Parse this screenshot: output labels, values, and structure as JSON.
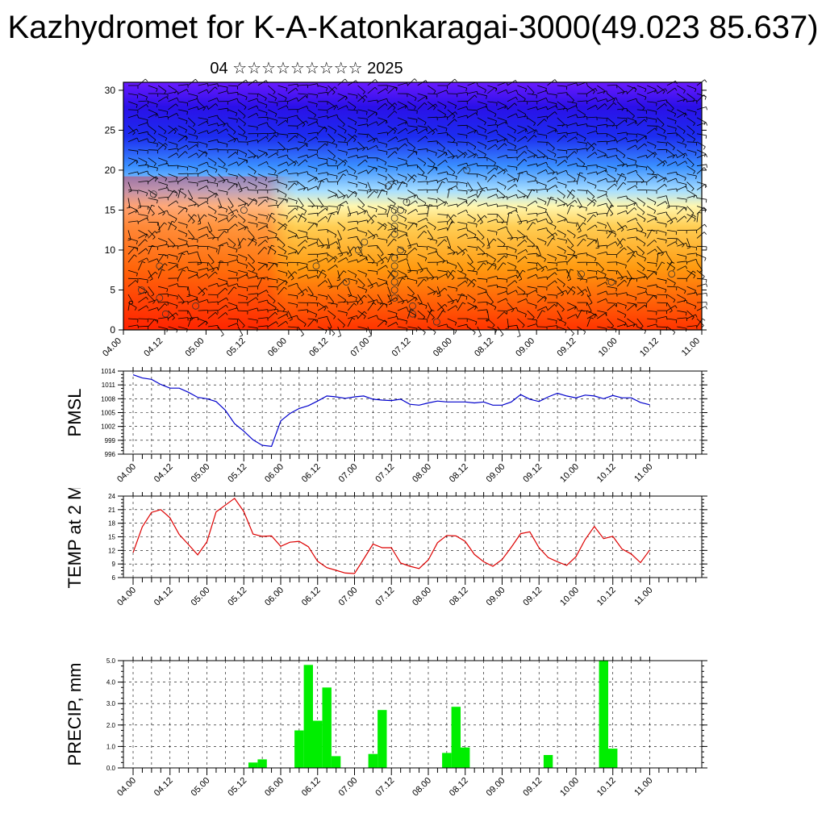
{
  "title": "Kazhydromet for K-A-Katonkaragai-3000(49.023 85.637)",
  "subtitle": "04 ☆☆☆☆☆☆☆☆☆ 2025",
  "colors": {
    "pmsl_line": "#0000cc",
    "temp_line": "#dd0000",
    "precip_bar": "#00ee00"
  },
  "chart_data": [
    {
      "type": "heatmap",
      "name": "vertical-wind-section",
      "x_ticks": [
        "04.00",
        "04.12",
        "05.00",
        "05.12",
        "06.00",
        "06.12",
        "07.00",
        "07.12",
        "08.00",
        "08.12",
        "09.00",
        "09.12",
        "10.00",
        "10.12",
        "11.00"
      ],
      "y_ticks": [
        0,
        5,
        10,
        15,
        20,
        25,
        30
      ],
      "ylim": [
        0,
        31
      ],
      "colormap": [
        "#ff1a00",
        "#ff8a00",
        "#ffd65a",
        "#fffaa8",
        "#9fdcff",
        "#2f86ff",
        "#1a1af0",
        "#6a17ff"
      ]
    },
    {
      "type": "line",
      "ylabel": "PMSL",
      "y_ticks": [
        996,
        999,
        1002,
        1005,
        1008,
        1011,
        1014
      ],
      "ylim": [
        996,
        1014
      ],
      "x_ticks": [
        "04.00",
        "04.12",
        "05.00",
        "05.12",
        "06.00",
        "06.12",
        "07.00",
        "07.12",
        "08.00",
        "08.12",
        "09.00",
        "09.12",
        "10.00",
        "10.12",
        "11.00"
      ],
      "x": [
        0,
        1,
        2,
        3,
        4,
        5,
        6,
        7,
        8,
        9,
        10,
        11,
        12,
        13,
        14,
        15,
        16,
        17,
        18,
        19,
        20,
        21,
        22,
        23,
        24,
        25,
        26,
        27,
        28,
        29,
        30,
        31,
        32,
        33,
        34,
        35,
        36,
        37,
        38,
        39,
        40,
        41,
        42,
        43,
        44,
        45,
        46,
        47,
        48,
        49,
        50,
        51,
        52,
        53,
        54,
        55,
        56
      ],
      "values": [
        1013.2,
        1012.5,
        1012.2,
        1011.1,
        1010.3,
        1010.3,
        1009.4,
        1008.3,
        1008.0,
        1007.4,
        1005.5,
        1002.6,
        1001.0,
        999.1,
        997.9,
        997.7,
        1003.2,
        1004.8,
        1005.9,
        1006.5,
        1007.5,
        1008.6,
        1008.4,
        1008.1,
        1008.4,
        1008.6,
        1007.9,
        1007.7,
        1007.6,
        1007.9,
        1006.8,
        1006.6,
        1007.1,
        1007.5,
        1007.3,
        1007.3,
        1007.3,
        1007.1,
        1007.3,
        1006.6,
        1006.6,
        1007.3,
        1008.9,
        1007.9,
        1007.4,
        1008.4,
        1009.2,
        1008.6,
        1008.2,
        1008.8,
        1008.6,
        1008.0,
        1008.7,
        1008.2,
        1008.2,
        1007.2,
        1006.7
      ]
    },
    {
      "type": "line",
      "ylabel": "TEMP at 2 M",
      "y_ticks": [
        6,
        9,
        12,
        15,
        18,
        21,
        24
      ],
      "ylim": [
        6,
        24
      ],
      "x_ticks": [
        "04.00",
        "04.12",
        "05.00",
        "05.12",
        "06.00",
        "06.12",
        "07.00",
        "07.12",
        "08.00",
        "08.12",
        "09.00",
        "09.12",
        "10.00",
        "10.12",
        "11.00"
      ],
      "x": [
        0,
        1,
        2,
        3,
        4,
        5,
        6,
        7,
        8,
        9,
        10,
        11,
        12,
        13,
        14,
        15,
        16,
        17,
        18,
        19,
        20,
        21,
        22,
        23,
        24,
        25,
        26,
        27,
        28,
        29,
        30,
        31,
        32,
        33,
        34,
        35,
        36,
        37,
        38,
        39,
        40,
        41,
        42,
        43,
        44,
        45,
        46,
        47,
        48,
        49,
        50,
        51,
        52,
        53,
        54,
        55,
        56
      ],
      "values": [
        11.5,
        17.2,
        20.4,
        21.0,
        19.2,
        15.5,
        13.3,
        11.0,
        13.9,
        20.5,
        22.0,
        23.5,
        20.6,
        15.6,
        15.1,
        15.2,
        12.9,
        13.8,
        14.0,
        12.8,
        9.6,
        8.2,
        7.6,
        7.0,
        6.9,
        10.1,
        13.4,
        12.6,
        12.6,
        9.2,
        8.5,
        8.0,
        9.9,
        13.7,
        15.3,
        15.2,
        14.0,
        11.1,
        9.5,
        8.5,
        10.0,
        12.7,
        15.7,
        16.1,
        12.6,
        10.4,
        9.5,
        8.7,
        10.6,
        14.4,
        17.3,
        14.6,
        15.1,
        12.3,
        11.2,
        9.3,
        12.1
      ]
    },
    {
      "type": "bar",
      "ylabel": "PRECIP, mm",
      "y_ticks": [
        "0.0",
        "1.0",
        "2.0",
        "3.0",
        "4.0",
        "5.0"
      ],
      "ylim": [
        0,
        5
      ],
      "x_ticks": [
        "04.00",
        "04.12",
        "05.00",
        "05.12",
        "06.00",
        "06.12",
        "07.00",
        "07.12",
        "08.00",
        "08.12",
        "09.00",
        "09.12",
        "10.00",
        "10.12",
        "11.00"
      ],
      "x": [
        0,
        1,
        2,
        3,
        4,
        5,
        6,
        7,
        8,
        9,
        10,
        11,
        12,
        13,
        14,
        15,
        16,
        17,
        18,
        19,
        20,
        21,
        22,
        23,
        24,
        25,
        26,
        27,
        28,
        29,
        30,
        31,
        32,
        33,
        34,
        35,
        36,
        37,
        38,
        39,
        40,
        41,
        42,
        43,
        44,
        45,
        46,
        47,
        48,
        49,
        50,
        51,
        52,
        53,
        54,
        55,
        56
      ],
      "values": [
        0,
        0,
        0,
        0,
        0,
        0,
        0,
        0,
        0,
        0,
        0,
        0,
        0,
        0.25,
        0.4,
        0,
        0,
        0,
        1.75,
        4.8,
        2.2,
        3.75,
        0.55,
        0,
        0,
        0,
        0.65,
        2.7,
        0,
        0,
        0,
        0,
        0,
        0,
        0.7,
        2.85,
        0.95,
        0,
        0,
        0,
        0,
        0,
        0,
        0,
        0,
        0.6,
        0,
        0,
        0,
        0,
        0,
        5.0,
        0.9,
        0,
        0,
        0,
        0
      ]
    }
  ]
}
